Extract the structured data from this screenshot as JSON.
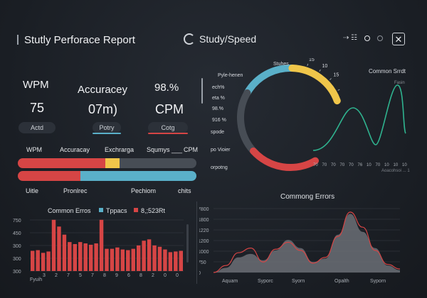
{
  "header": {
    "title": "Stutly Perforace Report",
    "center_title": "Study/Speed",
    "icons": [
      "settings-sliders-icon",
      "circle-icon",
      "dot-icon",
      "close-icon"
    ]
  },
  "metrics": [
    {
      "label": "WPM",
      "value": "75",
      "pill": "Actd",
      "accent": ""
    },
    {
      "label": "Accuracey",
      "value": "07m)",
      "pill": "Potry",
      "accent": "#5ab0c9"
    },
    {
      "label": "98.%",
      "value": "CPM",
      "pill": "Cotg",
      "accent": "#d64545"
    }
  ],
  "progress": {
    "headers": [
      "WPM",
      "Accuracay",
      "Exchrarga",
      "Squmys ___",
      "CPM"
    ],
    "bar1": {
      "red": 0.49,
      "yellow": 0.08,
      "color_red": "#d64545",
      "color_yellow": "#f0c64a",
      "color_track": "#474d55"
    },
    "bar2": {
      "red": 0.35,
      "color_red": "#d64545",
      "color_blue": "#5ab0c9"
    },
    "footers": [
      "Uitle",
      "Pronlrec",
      "Pechiom",
      "chits"
    ]
  },
  "gauge": {
    "top_label": "Stuhes",
    "ticks": [
      "15",
      "10",
      "15",
      "16",
      "15"
    ],
    "left_labels": [
      "Pyle-henen",
      "ech%",
      "eta %",
      "98.%",
      "916 %",
      "spode",
      "po Vioier",
      "orpotng"
    ],
    "segments": [
      {
        "name": "blue",
        "fraction": 0.28,
        "color": "#5ab0c9"
      },
      {
        "name": "yellow",
        "fraction": 0.2,
        "color": "#f0c64a"
      },
      {
        "name": "gray",
        "fraction": 0.2,
        "color": "#474d55"
      },
      {
        "name": "red",
        "fraction": 0.32,
        "color": "#d64545"
      }
    ]
  },
  "trend": {
    "title": "Common Srrdt",
    "sublabel": "Fasin",
    "x_ticks": [
      "70",
      "70",
      "70",
      "70",
      "70",
      "76",
      "10",
      "70",
      "10",
      "10",
      "10"
    ],
    "bottom_label": "Aoacohsoi ... 1",
    "color": "#2fb38f"
  },
  "chart_data": [
    {
      "type": "bar",
      "title": "Common Erros",
      "legend": [
        "Tppacs",
        "8,;523Rt"
      ],
      "legend_colors": [
        "#5ab0c9",
        "#d64545"
      ],
      "ylabel": "",
      "yticks": [
        "750",
        "450",
        "300",
        "300",
        "300"
      ],
      "xticks": [
        "3",
        "2",
        "7",
        "5",
        "7",
        "8",
        "9",
        "6",
        "8",
        "2",
        "0",
        "0"
      ],
      "xlabel": "Fyuih",
      "values": [
        300,
        310,
        270,
        290,
        760,
        660,
        540,
        430,
        400,
        430,
        410,
        390,
        410,
        760,
        330,
        330,
        350,
        320,
        310,
        330,
        380,
        450,
        470,
        380,
        360,
        320,
        280,
        290,
        300
      ],
      "bar_color": "#d64545"
    },
    {
      "type": "area",
      "title": "Commong Errors",
      "yticks": [
        "7800",
        "1800",
        "1220",
        "1200",
        "1000",
        "750",
        "0"
      ],
      "categories": [
        "Aquam",
        "Syporc",
        "Syorn",
        "Opalth",
        "Syporn"
      ],
      "area_values": [
        0,
        80,
        260,
        320,
        210,
        380,
        560,
        420,
        180,
        240,
        650,
        1010,
        700,
        420,
        120,
        40
      ],
      "line_values": [
        0,
        120,
        340,
        420,
        180,
        400,
        520,
        380,
        160,
        260,
        620,
        1040,
        780,
        380,
        140,
        60
      ],
      "area_color": "#6b6f76",
      "line_color": "#d64545"
    }
  ]
}
